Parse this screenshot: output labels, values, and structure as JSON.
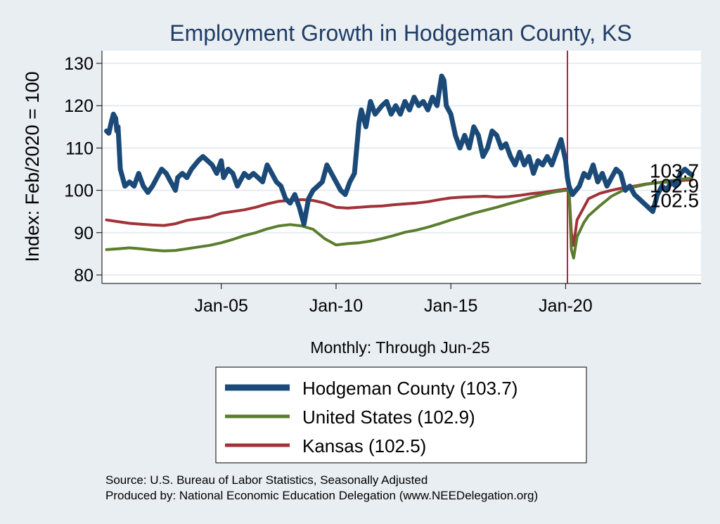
{
  "chart_data": {
    "type": "line",
    "title": "Employment Growth in Hodgeman  County, KS",
    "xlabel": "Monthly: Through Jun-25",
    "ylabel": "Index: Feb/2020 = 100",
    "ylim": [
      78,
      133
    ],
    "xlim": [
      1999.8,
      2025.9
    ],
    "yticks": [
      80,
      90,
      100,
      110,
      120,
      130
    ],
    "xticks": [
      {
        "value": 2005.0,
        "label": "Jan-05"
      },
      {
        "value": 2010.0,
        "label": "Jan-10"
      },
      {
        "value": 2015.0,
        "label": "Jan-15"
      },
      {
        "value": 2020.0,
        "label": "Jan-20"
      }
    ],
    "reference_line": {
      "x": 2020.08,
      "color": "#b5203f"
    },
    "grid": true,
    "series": [
      {
        "name": "Hodgeman  County",
        "legend_label": "Hodgeman  County (103.7)",
        "end_label": "103.7",
        "color": "#1b4a78",
        "width": 7,
        "points": [
          [
            2000.0,
            114
          ],
          [
            2000.1,
            113.5
          ],
          [
            2000.2,
            116
          ],
          [
            2000.3,
            118
          ],
          [
            2000.4,
            117
          ],
          [
            2000.45,
            114
          ],
          [
            2000.5,
            115
          ],
          [
            2000.6,
            105
          ],
          [
            2000.7,
            103
          ],
          [
            2000.8,
            101
          ],
          [
            2001.0,
            102
          ],
          [
            2001.2,
            101
          ],
          [
            2001.4,
            104
          ],
          [
            2001.6,
            101
          ],
          [
            2001.8,
            99.5
          ],
          [
            2002.0,
            101
          ],
          [
            2002.2,
            103
          ],
          [
            2002.4,
            105
          ],
          [
            2002.6,
            104
          ],
          [
            2002.8,
            102
          ],
          [
            2003.0,
            100
          ],
          [
            2003.1,
            103
          ],
          [
            2003.3,
            104
          ],
          [
            2003.5,
            103
          ],
          [
            2003.7,
            105
          ],
          [
            2004.0,
            107
          ],
          [
            2004.2,
            108
          ],
          [
            2004.4,
            107
          ],
          [
            2004.6,
            106
          ],
          [
            2004.8,
            104
          ],
          [
            2005.0,
            107
          ],
          [
            2005.1,
            103
          ],
          [
            2005.3,
            105
          ],
          [
            2005.5,
            104
          ],
          [
            2005.7,
            101
          ],
          [
            2006.0,
            104
          ],
          [
            2006.2,
            103
          ],
          [
            2006.4,
            104
          ],
          [
            2006.6,
            103
          ],
          [
            2006.8,
            102
          ],
          [
            2007.0,
            106
          ],
          [
            2007.2,
            104
          ],
          [
            2007.4,
            102
          ],
          [
            2007.6,
            101
          ],
          [
            2007.8,
            98
          ],
          [
            2008.0,
            97
          ],
          [
            2008.2,
            99
          ],
          [
            2008.4,
            96
          ],
          [
            2008.6,
            92
          ],
          [
            2008.8,
            98
          ],
          [
            2009.0,
            100
          ],
          [
            2009.2,
            101
          ],
          [
            2009.4,
            102
          ],
          [
            2009.6,
            106
          ],
          [
            2009.8,
            104
          ],
          [
            2010.0,
            102
          ],
          [
            2010.2,
            100
          ],
          [
            2010.4,
            99
          ],
          [
            2010.6,
            102
          ],
          [
            2010.8,
            104
          ],
          [
            2011.0,
            116
          ],
          [
            2011.1,
            119
          ],
          [
            2011.3,
            115
          ],
          [
            2011.5,
            121
          ],
          [
            2011.7,
            118
          ],
          [
            2012.0,
            120
          ],
          [
            2012.2,
            121
          ],
          [
            2012.4,
            118
          ],
          [
            2012.6,
            120
          ],
          [
            2012.8,
            118
          ],
          [
            2013.0,
            121
          ],
          [
            2013.2,
            119
          ],
          [
            2013.4,
            122
          ],
          [
            2013.6,
            120
          ],
          [
            2013.8,
            121
          ],
          [
            2014.0,
            119
          ],
          [
            2014.2,
            122
          ],
          [
            2014.4,
            120
          ],
          [
            2014.6,
            127
          ],
          [
            2014.7,
            126
          ],
          [
            2014.8,
            120
          ],
          [
            2015.0,
            118
          ],
          [
            2015.2,
            113
          ],
          [
            2015.4,
            110
          ],
          [
            2015.6,
            113
          ],
          [
            2015.8,
            110
          ],
          [
            2016.0,
            115
          ],
          [
            2016.2,
            113
          ],
          [
            2016.4,
            108
          ],
          [
            2016.6,
            110
          ],
          [
            2016.8,
            114
          ],
          [
            2017.0,
            113
          ],
          [
            2017.2,
            110
          ],
          [
            2017.4,
            111
          ],
          [
            2017.6,
            108
          ],
          [
            2017.8,
            106
          ],
          [
            2018.0,
            109
          ],
          [
            2018.2,
            106
          ],
          [
            2018.4,
            108
          ],
          [
            2018.6,
            104
          ],
          [
            2018.8,
            107
          ],
          [
            2019.0,
            106
          ],
          [
            2019.2,
            108
          ],
          [
            2019.4,
            106
          ],
          [
            2019.6,
            109
          ],
          [
            2019.8,
            112
          ],
          [
            2020.0,
            107
          ],
          [
            2020.08,
            103
          ],
          [
            2020.15,
            101
          ],
          [
            2020.3,
            99
          ],
          [
            2020.6,
            101
          ],
          [
            2020.8,
            104
          ],
          [
            2021.0,
            103
          ],
          [
            2021.2,
            106
          ],
          [
            2021.4,
            102
          ],
          [
            2021.6,
            104
          ],
          [
            2021.8,
            101
          ],
          [
            2022.0,
            103
          ],
          [
            2022.2,
            105
          ],
          [
            2022.4,
            104
          ],
          [
            2022.6,
            100
          ],
          [
            2022.8,
            101
          ],
          [
            2023.0,
            99
          ],
          [
            2023.2,
            98
          ],
          [
            2023.4,
            97
          ],
          [
            2023.6,
            96
          ],
          [
            2023.8,
            95
          ],
          [
            2024.0,
            99
          ],
          [
            2024.2,
            101
          ],
          [
            2024.4,
            100
          ],
          [
            2024.6,
            102
          ],
          [
            2024.8,
            101
          ],
          [
            2025.0,
            104
          ],
          [
            2025.2,
            105
          ],
          [
            2025.4,
            104
          ],
          [
            2025.5,
            103.7
          ]
        ]
      },
      {
        "name": "Kansas",
        "legend_label": "Kansas (102.5)",
        "end_label": "102.5",
        "color": "#a03238",
        "width": 4,
        "points": [
          [
            2000.0,
            93
          ],
          [
            2000.5,
            92.6
          ],
          [
            2001.0,
            92.2
          ],
          [
            2001.5,
            92
          ],
          [
            2002.0,
            91.8
          ],
          [
            2002.5,
            91.7
          ],
          [
            2003.0,
            92.1
          ],
          [
            2003.5,
            92.9
          ],
          [
            2004.0,
            93.3
          ],
          [
            2004.5,
            93.7
          ],
          [
            2005.0,
            94.6
          ],
          [
            2005.5,
            95.0
          ],
          [
            2006.0,
            95.4
          ],
          [
            2006.5,
            96.0
          ],
          [
            2007.0,
            96.8
          ],
          [
            2007.5,
            97.4
          ],
          [
            2008.0,
            97.6
          ],
          [
            2008.5,
            97.8
          ],
          [
            2009.0,
            97.6
          ],
          [
            2009.5,
            97.0
          ],
          [
            2010.0,
            96.0
          ],
          [
            2010.5,
            95.8
          ],
          [
            2011.0,
            96.0
          ],
          [
            2011.5,
            96.2
          ],
          [
            2012.0,
            96.3
          ],
          [
            2012.5,
            96.6
          ],
          [
            2013.0,
            96.8
          ],
          [
            2013.5,
            97.0
          ],
          [
            2014.0,
            97.3
          ],
          [
            2014.5,
            97.8
          ],
          [
            2015.0,
            98.2
          ],
          [
            2015.5,
            98.4
          ],
          [
            2016.0,
            98.5
          ],
          [
            2016.5,
            98.6
          ],
          [
            2017.0,
            98.4
          ],
          [
            2017.5,
            98.5
          ],
          [
            2018.0,
            98.8
          ],
          [
            2018.5,
            99.2
          ],
          [
            2019.0,
            99.5
          ],
          [
            2019.5,
            99.9
          ],
          [
            2020.0,
            100.3
          ],
          [
            2020.15,
            100
          ],
          [
            2020.25,
            90
          ],
          [
            2020.35,
            87
          ],
          [
            2020.5,
            93
          ],
          [
            2020.8,
            96
          ],
          [
            2021.0,
            98
          ],
          [
            2021.5,
            99.3
          ],
          [
            2022.0,
            100
          ],
          [
            2022.5,
            100.6
          ],
          [
            2023.0,
            101
          ],
          [
            2023.5,
            101.5
          ],
          [
            2024.0,
            101.8
          ],
          [
            2024.5,
            102
          ],
          [
            2025.0,
            102.3
          ],
          [
            2025.5,
            102.5
          ]
        ]
      },
      {
        "name": "United States",
        "legend_label": "United States (102.9)",
        "end_label": "102.9",
        "color": "#5b7d2e",
        "width": 4,
        "points": [
          [
            2000.0,
            86
          ],
          [
            2000.5,
            86.2
          ],
          [
            2001.0,
            86.4
          ],
          [
            2001.5,
            86.2
          ],
          [
            2002.0,
            85.9
          ],
          [
            2002.5,
            85.7
          ],
          [
            2003.0,
            85.8
          ],
          [
            2003.5,
            86.2
          ],
          [
            2004.0,
            86.6
          ],
          [
            2004.5,
            87.0
          ],
          [
            2005.0,
            87.6
          ],
          [
            2005.5,
            88.4
          ],
          [
            2006.0,
            89.3
          ],
          [
            2006.5,
            90.0
          ],
          [
            2007.0,
            90.9
          ],
          [
            2007.5,
            91.6
          ],
          [
            2008.0,
            91.9
          ],
          [
            2008.5,
            91.6
          ],
          [
            2009.0,
            90.8
          ],
          [
            2009.5,
            88.6
          ],
          [
            2010.0,
            87.1
          ],
          [
            2010.5,
            87.4
          ],
          [
            2011.0,
            87.6
          ],
          [
            2011.5,
            88.0
          ],
          [
            2012.0,
            88.6
          ],
          [
            2012.5,
            89.3
          ],
          [
            2013.0,
            90.1
          ],
          [
            2013.5,
            90.6
          ],
          [
            2014.0,
            91.3
          ],
          [
            2014.5,
            92.1
          ],
          [
            2015.0,
            93.0
          ],
          [
            2015.5,
            93.8
          ],
          [
            2016.0,
            94.6
          ],
          [
            2016.5,
            95.3
          ],
          [
            2017.0,
            96.0
          ],
          [
            2017.5,
            96.8
          ],
          [
            2018.0,
            97.5
          ],
          [
            2018.5,
            98.3
          ],
          [
            2019.0,
            99.0
          ],
          [
            2019.5,
            99.6
          ],
          [
            2020.0,
            100
          ],
          [
            2020.15,
            99.8
          ],
          [
            2020.25,
            86
          ],
          [
            2020.35,
            84
          ],
          [
            2020.5,
            89
          ],
          [
            2020.8,
            92.4
          ],
          [
            2021.0,
            94
          ],
          [
            2021.5,
            96.4
          ],
          [
            2022.0,
            98.6
          ],
          [
            2022.5,
            100
          ],
          [
            2023.0,
            100.8
          ],
          [
            2023.5,
            101.4
          ],
          [
            2024.0,
            101.8
          ],
          [
            2024.5,
            102.2
          ],
          [
            2025.0,
            102.6
          ],
          [
            2025.5,
            102.9
          ]
        ]
      }
    ]
  },
  "legend_order": [
    0,
    2,
    1
  ],
  "source_line1": "Source: U.S. Bureau of Labor Statistics, Seasonally Adjusted",
  "source_line2": "Produced by: National Economic Education Delegation (www.NEEDelegation.org)"
}
